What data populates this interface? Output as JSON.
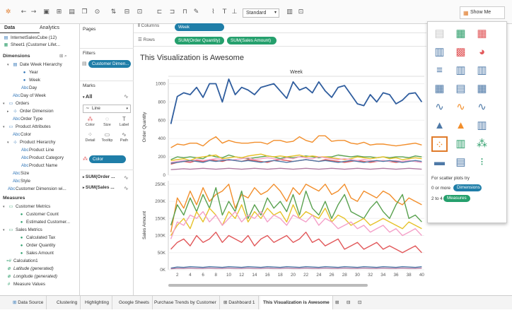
{
  "toolbar": {
    "standard": "Standard",
    "show_me": "Show Me"
  },
  "data_pane": {
    "tab_data": "Data",
    "tab_analytics": "Analytics",
    "sources": [
      "InternetSalesCube (12)",
      "Sheet1 (Customer Lifet..."
    ],
    "dimensions_title": "Dimensions",
    "dimension_rows": [
      "Date Week Hierarchy",
      "Year",
      "Week",
      "Day",
      "Day of Week",
      "Orders",
      "Order Dimension",
      "Order Type",
      "Product Attributes",
      "Color",
      "Product Hierarchy",
      "Product Line",
      "Product Category",
      "Product Name",
      "Size",
      "Style",
      "Customer Dimension wi..."
    ],
    "measures_title": "Measures",
    "measure_rows": [
      "Customer Metrics",
      "Customer Count",
      "Estimated Customer...",
      "Sales Metrics",
      "Calculated Tax",
      "Order Quantity",
      "Sales Amount",
      "Calculation1",
      "Latitude (generated)",
      "Longitude (generated)",
      "Measure Values"
    ]
  },
  "cards": {
    "pages": "Pages",
    "filters": "Filters",
    "filter_pill": "Customer Dimen...",
    "marks": "Marks",
    "all": "All",
    "mark_type": "Line",
    "buttons": [
      "Color",
      "Size",
      "Label",
      "Detail",
      "Tooltip",
      "Path"
    ],
    "color_pill": "Color",
    "sections": [
      "SUM(Order ...",
      "SUM(Sales ..."
    ]
  },
  "shelves": {
    "columns_label": "Columns",
    "columns_pill": "Week",
    "rows_label": "Rows",
    "rows_pills": [
      "SUM(Order Quantity)",
      "SUM(Sales Amount)"
    ]
  },
  "view": {
    "title": "This Visualization is Awesome"
  },
  "chart_data": [
    {
      "type": "line",
      "title": "Week",
      "ylabel": "Order Quantity",
      "ylim": [
        0,
        1050
      ],
      "yticks": [
        0,
        200,
        400,
        600,
        800,
        1000
      ],
      "x": [
        1,
        2,
        3,
        4,
        5,
        6,
        7,
        8,
        9,
        10,
        11,
        12,
        13,
        14,
        15,
        16,
        17,
        18,
        19,
        20,
        21,
        22,
        23,
        24,
        25,
        26,
        27,
        28,
        29,
        30,
        31,
        32,
        33,
        34,
        35,
        36,
        37,
        38,
        39,
        40
      ],
      "series": [
        {
          "color": "#2f5d9e",
          "values": [
            560,
            860,
            900,
            880,
            960,
            850,
            1000,
            1000,
            800,
            1050,
            880,
            960,
            930,
            880,
            960,
            980,
            1000,
            920,
            840,
            1020,
            930,
            960,
            900,
            1020,
            920,
            850,
            960,
            980,
            880,
            780,
            760,
            880,
            800,
            900,
            880,
            780,
            820,
            890,
            900,
            800
          ]
        },
        {
          "color": "#f28e2b",
          "values": [
            300,
            340,
            330,
            350,
            350,
            320,
            380,
            420,
            350,
            380,
            360,
            350,
            350,
            360,
            360,
            340,
            380,
            380,
            360,
            370,
            420,
            380,
            360,
            430,
            430,
            370,
            380,
            380,
            350,
            340,
            360,
            330,
            340,
            340,
            330,
            320,
            330,
            340,
            350,
            330
          ]
        },
        {
          "color": "#59a14f",
          "values": [
            170,
            200,
            190,
            200,
            190,
            180,
            220,
            200,
            190,
            220,
            200,
            190,
            180,
            190,
            200,
            210,
            200,
            180,
            200,
            190,
            200,
            210,
            200,
            190,
            200,
            200,
            220,
            210,
            200,
            210,
            200,
            200,
            190,
            200,
            190,
            200,
            200,
            190,
            210,
            200
          ]
        },
        {
          "color": "#e6c229",
          "values": [
            160,
            170,
            180,
            160,
            190,
            200,
            210,
            220,
            180,
            190,
            200,
            190,
            210,
            220,
            230,
            210,
            200,
            210,
            200,
            210,
            220,
            200,
            210,
            200,
            200,
            190,
            180,
            170,
            180,
            200,
            190,
            180,
            190,
            200,
            180,
            190,
            170,
            180,
            190,
            180
          ]
        },
        {
          "color": "#e15759",
          "values": [
            120,
            140,
            150,
            140,
            160,
            150,
            170,
            160,
            150,
            170,
            160,
            150,
            170,
            160,
            150,
            140,
            160,
            170,
            160,
            150,
            160,
            170,
            160,
            150,
            170,
            160,
            150,
            140,
            150,
            160,
            150,
            140,
            150,
            160,
            150,
            140,
            150,
            160,
            150,
            140
          ]
        },
        {
          "color": "#f4a0c8",
          "values": [
            140,
            150,
            160,
            150,
            170,
            160,
            170,
            180,
            170,
            160,
            170,
            180,
            190,
            170,
            180,
            190,
            180,
            170,
            190,
            180,
            200,
            190,
            180,
            200,
            190,
            180,
            170,
            180,
            170,
            160,
            170,
            160,
            150,
            160,
            150,
            160,
            150,
            160,
            150,
            140
          ]
        },
        {
          "color": "#4e79a7",
          "values": [
            130,
            140,
            150,
            160,
            150,
            140,
            160,
            150,
            160,
            170,
            160,
            150,
            160,
            150,
            140,
            150,
            160,
            150,
            140,
            150,
            160,
            170,
            160,
            150,
            160,
            150,
            140,
            150,
            160,
            150,
            140,
            150,
            160,
            150,
            160,
            150,
            140,
            150,
            160,
            150
          ]
        },
        {
          "color": "#b07aa1",
          "values": [
            60,
            65,
            70,
            65,
            70,
            75,
            70,
            65,
            70,
            75,
            70,
            65,
            70,
            75,
            70,
            65,
            70,
            75,
            70,
            65,
            70,
            75,
            70,
            65,
            70,
            75,
            70,
            65,
            70,
            75,
            70,
            65,
            70,
            75,
            70,
            65,
            70,
            75,
            70,
            65
          ]
        }
      ]
    },
    {
      "type": "line",
      "ylabel": "Sales Amount",
      "ylim": [
        0,
        260000
      ],
      "yticks": [
        0,
        50000,
        100000,
        150000,
        200000,
        250000
      ],
      "ytick_labels": [
        "0K",
        "50K",
        "100K",
        "150K",
        "200K",
        "250K"
      ],
      "x": [
        1,
        2,
        3,
        4,
        5,
        6,
        7,
        8,
        9,
        10,
        11,
        12,
        13,
        14,
        15,
        16,
        17,
        18,
        19,
        20,
        21,
        22,
        23,
        24,
        25,
        26,
        27,
        28,
        29,
        30,
        31,
        32,
        33,
        34,
        35,
        36,
        37,
        38,
        39,
        40
      ],
      "xticks": [
        2,
        4,
        6,
        8,
        10,
        12,
        14,
        16,
        18,
        20,
        22,
        24,
        26,
        28,
        30,
        32,
        34,
        36,
        38,
        40
      ],
      "series": [
        {
          "color": "#f28e2b",
          "values": [
            110000,
            210000,
            180000,
            230000,
            190000,
            240000,
            200000,
            220000,
            230000,
            250000,
            180000,
            220000,
            210000,
            240000,
            220000,
            230000,
            250000,
            230000,
            200000,
            240000,
            220000,
            250000,
            240000,
            230000,
            250000,
            220000,
            230000,
            250000,
            210000,
            200000,
            230000,
            220000,
            210000,
            230000,
            220000,
            200000,
            190000,
            210000,
            200000,
            190000
          ]
        },
        {
          "color": "#59a14f",
          "values": [
            130000,
            190000,
            160000,
            210000,
            170000,
            220000,
            180000,
            240000,
            160000,
            200000,
            170000,
            230000,
            150000,
            190000,
            160000,
            210000,
            180000,
            200000,
            170000,
            220000,
            160000,
            230000,
            180000,
            160000,
            200000,
            150000,
            190000,
            220000,
            170000,
            160000,
            150000,
            180000,
            200000,
            170000,
            150000,
            190000,
            220000,
            150000,
            160000,
            140000
          ]
        },
        {
          "color": "#e6c229",
          "values": [
            100000,
            130000,
            150000,
            120000,
            170000,
            140000,
            180000,
            160000,
            130000,
            170000,
            150000,
            190000,
            140000,
            170000,
            150000,
            180000,
            160000,
            170000,
            140000,
            190000,
            150000,
            170000,
            160000,
            150000,
            180000,
            140000,
            160000,
            150000,
            130000,
            140000,
            150000,
            130000,
            140000,
            150000,
            140000,
            130000,
            120000,
            140000,
            130000,
            120000
          ]
        },
        {
          "color": "#f4a0c8",
          "values": [
            90000,
            140000,
            130000,
            160000,
            150000,
            170000,
            140000,
            160000,
            130000,
            150000,
            170000,
            140000,
            160000,
            150000,
            170000,
            140000,
            160000,
            150000,
            130000,
            160000,
            150000,
            140000,
            160000,
            130000,
            150000,
            140000,
            120000,
            130000,
            140000,
            120000,
            130000,
            110000,
            120000,
            130000,
            110000,
            120000,
            100000,
            110000,
            120000,
            100000
          ]
        },
        {
          "color": "#e15759",
          "values": [
            60000,
            80000,
            90000,
            70000,
            100000,
            80000,
            90000,
            110000,
            80000,
            100000,
            90000,
            80000,
            100000,
            70000,
            90000,
            100000,
            80000,
            90000,
            100000,
            80000,
            90000,
            110000,
            80000,
            90000,
            70000,
            80000,
            90000,
            60000,
            70000,
            80000,
            60000,
            70000,
            80000,
            60000,
            70000,
            60000,
            50000,
            60000,
            70000,
            50000
          ]
        },
        {
          "color": "#4e79a7",
          "values": [
            5000,
            8000,
            7000,
            9000,
            8000,
            7000,
            9000,
            8000,
            7000,
            9000,
            8000,
            7000,
            9000,
            8000,
            7000,
            9000,
            8000,
            7000,
            9000,
            8000,
            7000,
            9000,
            8000,
            7000,
            9000,
            8000,
            7000,
            9000,
            8000,
            7000,
            9000,
            8000,
            7000,
            9000,
            8000,
            7000,
            9000,
            8000,
            7000,
            9000
          ]
        },
        {
          "color": "#b07aa1",
          "values": [
            3000,
            4000,
            4000,
            5000,
            4000,
            4000,
            5000,
            4000,
            4000,
            5000,
            4000,
            4000,
            5000,
            4000,
            4000,
            5000,
            4000,
            4000,
            5000,
            4000,
            4000,
            5000,
            4000,
            4000,
            5000,
            4000,
            4000,
            5000,
            4000,
            4000,
            5000,
            4000,
            4000,
            5000,
            4000,
            4000,
            5000,
            4000,
            4000,
            5000
          ]
        }
      ]
    }
  ],
  "show_me": {
    "hint_title": "For scatter plots try",
    "hint_line1": "0 or more",
    "hint_pill1": "Dimensions",
    "hint_line2": "2 to 4",
    "hint_pill2": "Measures"
  },
  "bottom_tabs": [
    "Data Source",
    "Clustering",
    "Highlighting",
    "Google Sheets",
    "Purchase Trends by Customer",
    "Dashboard 1",
    "This Visualization is Awesome"
  ]
}
